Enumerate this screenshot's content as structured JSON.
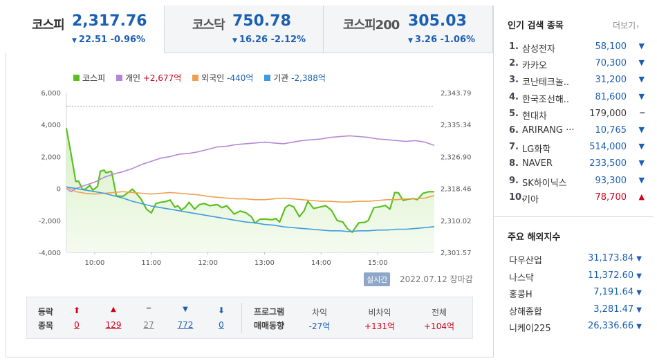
{
  "tabs": [
    {
      "name": "코스피",
      "value": "2,317.76",
      "arrow": "▼",
      "change": "22.51 -0.96%"
    },
    {
      "name": "코스닥",
      "value": "750.78",
      "arrow": "▼",
      "change": "16.26 -2.12%"
    },
    {
      "name": "코스피200",
      "value": "305.03",
      "arrow": "▼",
      "change": "3.26 -1.06%"
    }
  ],
  "legend": {
    "kospi": "코스피",
    "individual_label": "개인",
    "individual_value": "+2,677억",
    "foreign_label": "외국인",
    "foreign_value": "-440억",
    "institution_label": "기관",
    "institution_value": "-2,388억"
  },
  "colors": {
    "kospi": "#5bbf21",
    "individual": "#b586d6",
    "foreign": "#f0a04b",
    "institution": "#3d9ae0",
    "up": "#d0021b",
    "down": "#1a5fb4"
  },
  "chart_data": {
    "type": "line",
    "x_ticks": [
      "10:00",
      "11:00",
      "12:00",
      "13:00",
      "14:00",
      "15:00"
    ],
    "y_left_ticks": [
      "6,000",
      "4,000",
      "2,000",
      "0",
      "-2,000",
      "-4,000"
    ],
    "y_left_range": [
      -4000,
      6000
    ],
    "y_right_ticks": [
      "2,343.79",
      "2,335.34",
      "2,326.90",
      "2,318.46",
      "2,310.02",
      "2,301.57"
    ],
    "y_right_range": [
      2301.57,
      2343.79
    ],
    "x_range_minutes": [
      0,
      390
    ],
    "reference_level": 2340.2,
    "series": [
      {
        "name": "코스피",
        "axis": "right",
        "area": true,
        "points": [
          [
            0,
            2334.4
          ],
          [
            5,
            2327.5
          ],
          [
            10,
            2320.3
          ],
          [
            13,
            2320.4
          ],
          [
            17,
            2318.2
          ],
          [
            20,
            2318.3
          ],
          [
            25,
            2319.3
          ],
          [
            28,
            2318.0
          ],
          [
            33,
            2319.0
          ],
          [
            36,
            2323.0
          ],
          [
            40,
            2323.3
          ],
          [
            42,
            2322.6
          ],
          [
            47,
            2323.0
          ],
          [
            48,
            2322.8
          ],
          [
            53,
            2316.5
          ],
          [
            60,
            2316.4
          ],
          [
            65,
            2317.3
          ],
          [
            70,
            2318.3
          ],
          [
            75,
            2316.9
          ],
          [
            79,
            2315.7
          ],
          [
            85,
            2313.0
          ],
          [
            90,
            2312.0
          ],
          [
            95,
            2314.5
          ],
          [
            100,
            2314.8
          ],
          [
            105,
            2315.0
          ],
          [
            110,
            2315.4
          ],
          [
            115,
            2313.5
          ],
          [
            118,
            2313.9
          ],
          [
            122,
            2312.8
          ],
          [
            126,
            2313.5
          ],
          [
            130,
            2314.8
          ],
          [
            136,
            2313.0
          ],
          [
            141,
            2314.2
          ],
          [
            146,
            2314.5
          ],
          [
            152,
            2313.9
          ],
          [
            160,
            2314.2
          ],
          [
            165,
            2313.4
          ],
          [
            170,
            2313.9
          ],
          [
            178,
            2311.7
          ],
          [
            184,
            2312.5
          ],
          [
            190,
            2312.1
          ],
          [
            196,
            2311.0
          ],
          [
            200,
            2309.3
          ],
          [
            205,
            2310.3
          ],
          [
            210,
            2310.4
          ],
          [
            218,
            2310.2
          ],
          [
            222,
            2310.5
          ],
          [
            226,
            2309.6
          ],
          [
            232,
            2313.4
          ],
          [
            236,
            2314.1
          ],
          [
            241,
            2313.6
          ],
          [
            247,
            2311.0
          ],
          [
            252,
            2312.6
          ],
          [
            256,
            2315.1
          ],
          [
            262,
            2313.2
          ],
          [
            268,
            2313.5
          ],
          [
            275,
            2313.9
          ],
          [
            281,
            2312.7
          ],
          [
            287,
            2310.0
          ],
          [
            293,
            2309.6
          ],
          [
            298,
            2307.8
          ],
          [
            303,
            2306.9
          ],
          [
            306,
            2308.0
          ],
          [
            310,
            2309.4
          ],
          [
            316,
            2309.5
          ],
          [
            320,
            2310.0
          ],
          [
            326,
            2313.4
          ],
          [
            332,
            2313.6
          ],
          [
            338,
            2314.0
          ],
          [
            343,
            2313.0
          ],
          [
            348,
            2317.4
          ],
          [
            352,
            2317.3
          ],
          [
            357,
            2315.3
          ],
          [
            362,
            2315.6
          ],
          [
            368,
            2315.8
          ],
          [
            372,
            2315.5
          ],
          [
            378,
            2317.2
          ],
          [
            384,
            2317.6
          ],
          [
            390,
            2317.6
          ]
        ]
      },
      {
        "name": "개인",
        "axis": "left",
        "points": [
          [
            0,
            0
          ],
          [
            5,
            -200
          ],
          [
            10,
            0
          ],
          [
            20,
            200
          ],
          [
            30,
            400
          ],
          [
            40,
            700
          ],
          [
            50,
            900
          ],
          [
            60,
            1050
          ],
          [
            70,
            1250
          ],
          [
            80,
            1500
          ],
          [
            90,
            1700
          ],
          [
            100,
            1900
          ],
          [
            110,
            2000
          ],
          [
            120,
            2150
          ],
          [
            130,
            2200
          ],
          [
            140,
            2300
          ],
          [
            150,
            2450
          ],
          [
            160,
            2600
          ],
          [
            170,
            2650
          ],
          [
            180,
            2750
          ],
          [
            190,
            2800
          ],
          [
            200,
            2850
          ],
          [
            210,
            2900
          ],
          [
            220,
            2850
          ],
          [
            230,
            2800
          ],
          [
            240,
            2900
          ],
          [
            250,
            3000
          ],
          [
            260,
            3050
          ],
          [
            270,
            3100
          ],
          [
            280,
            3200
          ],
          [
            290,
            3250
          ],
          [
            300,
            3300
          ],
          [
            310,
            3250
          ],
          [
            320,
            3200
          ],
          [
            330,
            3100
          ],
          [
            340,
            3050
          ],
          [
            350,
            3000
          ],
          [
            360,
            2950
          ],
          [
            370,
            3000
          ],
          [
            380,
            2900
          ],
          [
            390,
            2700
          ]
        ]
      },
      {
        "name": "외국인",
        "axis": "left",
        "points": [
          [
            0,
            100
          ],
          [
            10,
            -200
          ],
          [
            20,
            -300
          ],
          [
            30,
            -350
          ],
          [
            40,
            -300
          ],
          [
            50,
            -250
          ],
          [
            60,
            -200
          ],
          [
            70,
            -250
          ],
          [
            80,
            -300
          ],
          [
            90,
            -350
          ],
          [
            100,
            -300
          ],
          [
            110,
            -250
          ],
          [
            120,
            -300
          ],
          [
            130,
            -350
          ],
          [
            140,
            -400
          ],
          [
            150,
            -500
          ],
          [
            160,
            -550
          ],
          [
            170,
            -600
          ],
          [
            180,
            -650
          ],
          [
            190,
            -650
          ],
          [
            200,
            -700
          ],
          [
            210,
            -700
          ],
          [
            220,
            -650
          ],
          [
            230,
            -600
          ],
          [
            240,
            -650
          ],
          [
            250,
            -700
          ],
          [
            260,
            -750
          ],
          [
            270,
            -800
          ],
          [
            280,
            -800
          ],
          [
            290,
            -850
          ],
          [
            300,
            -850
          ],
          [
            310,
            -800
          ],
          [
            320,
            -800
          ],
          [
            330,
            -750
          ],
          [
            340,
            -700
          ],
          [
            350,
            -700
          ],
          [
            360,
            -650
          ],
          [
            370,
            -650
          ],
          [
            380,
            -600
          ],
          [
            390,
            -440
          ]
        ]
      },
      {
        "name": "기관",
        "axis": "left",
        "points": [
          [
            0,
            100
          ],
          [
            10,
            0
          ],
          [
            20,
            -100
          ],
          [
            30,
            -200
          ],
          [
            40,
            -300
          ],
          [
            50,
            -450
          ],
          [
            60,
            -600
          ],
          [
            70,
            -800
          ],
          [
            80,
            -950
          ],
          [
            90,
            -1100
          ],
          [
            100,
            -1200
          ],
          [
            110,
            -1300
          ],
          [
            120,
            -1400
          ],
          [
            130,
            -1500
          ],
          [
            140,
            -1600
          ],
          [
            150,
            -1700
          ],
          [
            160,
            -1800
          ],
          [
            170,
            -1900
          ],
          [
            180,
            -2000
          ],
          [
            190,
            -2100
          ],
          [
            200,
            -2150
          ],
          [
            210,
            -2250
          ],
          [
            220,
            -2300
          ],
          [
            230,
            -2400
          ],
          [
            240,
            -2450
          ],
          [
            250,
            -2500
          ],
          [
            260,
            -2550
          ],
          [
            270,
            -2600
          ],
          [
            280,
            -2650
          ],
          [
            290,
            -2650
          ],
          [
            300,
            -2700
          ],
          [
            310,
            -2650
          ],
          [
            320,
            -2650
          ],
          [
            330,
            -2600
          ],
          [
            340,
            -2600
          ],
          [
            350,
            -2550
          ],
          [
            360,
            -2550
          ],
          [
            370,
            -2500
          ],
          [
            380,
            -2450
          ],
          [
            390,
            -2388
          ]
        ]
      }
    ]
  },
  "realtime_label": "실시간",
  "datestamp": "2022.07.12 장마감",
  "breadth": {
    "label_top": "등락",
    "label_bottom": "종목",
    "items": [
      {
        "icon": "upper-limit",
        "glyph": "⬆",
        "value": "0",
        "tone": "up"
      },
      {
        "icon": "rise",
        "glyph": "▲",
        "value": "129",
        "tone": "up"
      },
      {
        "icon": "flat",
        "glyph": "━",
        "value": "27",
        "tone": "flat"
      },
      {
        "icon": "fall",
        "glyph": "▼",
        "value": "772",
        "tone": "down"
      },
      {
        "icon": "lower-limit",
        "glyph": "⬇",
        "value": "0",
        "tone": "down"
      }
    ]
  },
  "program": {
    "label_top": "프로그램",
    "label_bottom": "매매동향",
    "items": [
      {
        "label": "차익",
        "value": "-27억",
        "tone": "down"
      },
      {
        "label": "비차익",
        "value": "+131억",
        "tone": "up"
      },
      {
        "label": "전체",
        "value": "+104억",
        "tone": "up"
      }
    ]
  },
  "popular": {
    "title": "인기 검색 종목",
    "more": "더보기",
    "items": [
      {
        "rank": "1.",
        "name": "삼성전자",
        "price": "58,100",
        "dir": "▼",
        "tone": "down"
      },
      {
        "rank": "2.",
        "name": "카카오",
        "price": "70,300",
        "dir": "▼",
        "tone": "down"
      },
      {
        "rank": "3.",
        "name": "코난테크놀..",
        "price": "31,200",
        "dir": "▼",
        "tone": "down"
      },
      {
        "rank": "4.",
        "name": "한국조선해..",
        "price": "81,600",
        "dir": "▼",
        "tone": "down"
      },
      {
        "rank": "5.",
        "name": "현대차",
        "price": "179,000",
        "dir": "━",
        "tone": "flat"
      },
      {
        "rank": "6.",
        "name": "ARIRANG ···",
        "price": "10,765",
        "dir": "▼",
        "tone": "down"
      },
      {
        "rank": "7.",
        "name": "LG화학",
        "price": "514,000",
        "dir": "▼",
        "tone": "down"
      },
      {
        "rank": "8.",
        "name": "NAVER",
        "price": "233,500",
        "dir": "▼",
        "tone": "down"
      },
      {
        "rank": "9.",
        "name": "SK하이닉스",
        "price": "93,300",
        "dir": "▼",
        "tone": "down"
      },
      {
        "rank": "10.",
        "name": "기아",
        "price": "78,700",
        "dir": "▲",
        "tone": "up"
      }
    ]
  },
  "overseas": {
    "title": "주요 해외지수",
    "items": [
      {
        "name": "다우산업",
        "value": "31,173.84",
        "dir": "▼"
      },
      {
        "name": "나스닥",
        "value": "11,372.60",
        "dir": "▼"
      },
      {
        "name": "홍콩H",
        "value": "7,191.64",
        "dir": "▼"
      },
      {
        "name": "상해종합",
        "value": "3,281.47",
        "dir": "▼"
      },
      {
        "name": "니케이225",
        "value": "26,336.66",
        "dir": "▼"
      }
    ]
  }
}
